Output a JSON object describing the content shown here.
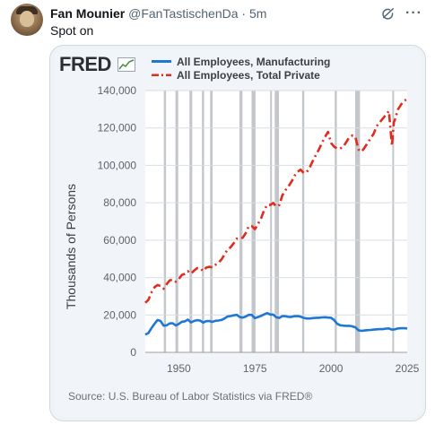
{
  "post": {
    "author_name": "Fan Mounier",
    "handle": "@FanTastischenDa",
    "separator": "·",
    "time": "5m",
    "text": "Spot on",
    "more_icon": "more-horizontal-icon",
    "grok_icon": "grok-icon"
  },
  "chart": {
    "logo_text": "FRED",
    "source": "Source: U.S. Bureau of Labor Statistics via FRED®",
    "colors": {
      "manufacturing": "#1f77d4",
      "private": "#e02b1e",
      "recession": "#b8bcc2"
    }
  },
  "chart_data": {
    "type": "line",
    "ylabel": "Thousands of Persons",
    "xlabel": "",
    "ylim": [
      0,
      140000
    ],
    "xlim": [
      1939,
      2025
    ],
    "yticks": [
      "0",
      "20,000",
      "40,000",
      "60,000",
      "80,000",
      "100,000",
      "120,000",
      "140,000"
    ],
    "xticks": [
      "1950",
      "1975",
      "2000",
      "2025"
    ],
    "legend_position": "top",
    "grid": "horizontal",
    "recessions": [
      [
        1945.1,
        1945.8
      ],
      [
        1948.9,
        1949.8
      ],
      [
        1953.5,
        1954.4
      ],
      [
        1957.6,
        1958.3
      ],
      [
        1960.3,
        1961.1
      ],
      [
        1969.9,
        1970.9
      ],
      [
        1973.9,
        1975.2
      ],
      [
        1980.0,
        1980.5
      ],
      [
        1981.5,
        1982.9
      ],
      [
        1990.5,
        1991.2
      ],
      [
        2001.2,
        2001.9
      ],
      [
        2007.9,
        2009.5
      ],
      [
        2020.1,
        2020.4
      ]
    ],
    "series": [
      {
        "name": "All Employees, Manufacturing",
        "style": "solid",
        "points": [
          [
            1939,
            9500
          ],
          [
            1940,
            10300
          ],
          [
            1941,
            12900
          ],
          [
            1942,
            15200
          ],
          [
            1943,
            17300
          ],
          [
            1944,
            16800
          ],
          [
            1945,
            14300
          ],
          [
            1946,
            14500
          ],
          [
            1947,
            15500
          ],
          [
            1948,
            15600
          ],
          [
            1949,
            14400
          ],
          [
            1950,
            15200
          ],
          [
            1951,
            16400
          ],
          [
            1952,
            16600
          ],
          [
            1953,
            17500
          ],
          [
            1954,
            16000
          ],
          [
            1955,
            16800
          ],
          [
            1956,
            17200
          ],
          [
            1957,
            17000
          ],
          [
            1958,
            15900
          ],
          [
            1959,
            16700
          ],
          [
            1960,
            16800
          ],
          [
            1961,
            16300
          ],
          [
            1962,
            16900
          ],
          [
            1963,
            17000
          ],
          [
            1964,
            17300
          ],
          [
            1965,
            18100
          ],
          [
            1966,
            19200
          ],
          [
            1967,
            19400
          ],
          [
            1968,
            19800
          ],
          [
            1969,
            20100
          ],
          [
            1970,
            18900
          ],
          [
            1971,
            18600
          ],
          [
            1972,
            19200
          ],
          [
            1973,
            20100
          ],
          [
            1974,
            20000
          ],
          [
            1975,
            18300
          ],
          [
            1976,
            18900
          ],
          [
            1977,
            19500
          ],
          [
            1978,
            20300
          ],
          [
            1979,
            21000
          ],
          [
            1980,
            20300
          ],
          [
            1981,
            20200
          ],
          [
            1982,
            18800
          ],
          [
            1983,
            18400
          ],
          [
            1984,
            19400
          ],
          [
            1985,
            19300
          ],
          [
            1986,
            19000
          ],
          [
            1987,
            19000
          ],
          [
            1988,
            19300
          ],
          [
            1989,
            19400
          ],
          [
            1990,
            19100
          ],
          [
            1991,
            18400
          ],
          [
            1992,
            18100
          ],
          [
            1993,
            18100
          ],
          [
            1994,
            18300
          ],
          [
            1995,
            18500
          ],
          [
            1996,
            18500
          ],
          [
            1997,
            18700
          ],
          [
            1998,
            18800
          ],
          [
            1999,
            18600
          ],
          [
            2000,
            18500
          ],
          [
            2001,
            17300
          ],
          [
            2002,
            15300
          ],
          [
            2003,
            14500
          ],
          [
            2004,
            14300
          ],
          [
            2005,
            14200
          ],
          [
            2006,
            14200
          ],
          [
            2007,
            13900
          ],
          [
            2008,
            13400
          ],
          [
            2009,
            11800
          ],
          [
            2010,
            11500
          ],
          [
            2011,
            11700
          ],
          [
            2012,
            11900
          ],
          [
            2013,
            12000
          ],
          [
            2014,
            12200
          ],
          [
            2015,
            12300
          ],
          [
            2016,
            12400
          ],
          [
            2017,
            12400
          ],
          [
            2018,
            12700
          ],
          [
            2019,
            12800
          ],
          [
            2020,
            12200
          ],
          [
            2021,
            12300
          ],
          [
            2022,
            12800
          ],
          [
            2023,
            12900
          ],
          [
            2024,
            12900
          ],
          [
            2025,
            12800
          ]
        ]
      },
      {
        "name": "All Employees, Total Private",
        "style": "dashdot",
        "points": [
          [
            1939,
            26500
          ],
          [
            1940,
            28000
          ],
          [
            1941,
            32000
          ],
          [
            1942,
            34800
          ],
          [
            1943,
            36000
          ],
          [
            1944,
            35500
          ],
          [
            1945,
            34000
          ],
          [
            1946,
            36500
          ],
          [
            1947,
            38500
          ],
          [
            1948,
            39000
          ],
          [
            1949,
            37800
          ],
          [
            1950,
            39200
          ],
          [
            1951,
            41400
          ],
          [
            1952,
            42000
          ],
          [
            1953,
            43400
          ],
          [
            1954,
            42100
          ],
          [
            1955,
            43700
          ],
          [
            1956,
            45000
          ],
          [
            1957,
            45000
          ],
          [
            1958,
            43500
          ],
          [
            1959,
            45300
          ],
          [
            1960,
            45800
          ],
          [
            1961,
            45400
          ],
          [
            1962,
            46800
          ],
          [
            1963,
            47900
          ],
          [
            1964,
            49600
          ],
          [
            1965,
            52300
          ],
          [
            1966,
            55100
          ],
          [
            1967,
            56200
          ],
          [
            1968,
            58300
          ],
          [
            1969,
            60800
          ],
          [
            1970,
            60800
          ],
          [
            1971,
            61300
          ],
          [
            1972,
            63800
          ],
          [
            1973,
            67500
          ],
          [
            1974,
            67500
          ],
          [
            1975,
            65900
          ],
          [
            1976,
            68600
          ],
          [
            1977,
            71600
          ],
          [
            1978,
            75900
          ],
          [
            1979,
            78800
          ],
          [
            1980,
            78800
          ],
          [
            1981,
            79900
          ],
          [
            1982,
            78000
          ],
          [
            1983,
            78800
          ],
          [
            1984,
            84000
          ],
          [
            1985,
            86700
          ],
          [
            1986,
            88700
          ],
          [
            1987,
            91300
          ],
          [
            1988,
            94400
          ],
          [
            1989,
            96500
          ],
          [
            1990,
            97700
          ],
          [
            1991,
            95900
          ],
          [
            1992,
            96400
          ],
          [
            1993,
            98800
          ],
          [
            1994,
            102300
          ],
          [
            1995,
            105500
          ],
          [
            1996,
            108400
          ],
          [
            1997,
            112000
          ],
          [
            1998,
            115100
          ],
          [
            1999,
            117900
          ],
          [
            2000,
            112000
          ],
          [
            2001,
            110000
          ],
          [
            2002,
            109000
          ],
          [
            2003,
            109000
          ],
          [
            2004,
            110000
          ],
          [
            2005,
            112500
          ],
          [
            2006,
            115000
          ],
          [
            2007,
            116000
          ],
          [
            2008,
            115000
          ],
          [
            2009,
            108500
          ],
          [
            2010,
            107300
          ],
          [
            2011,
            109500
          ],
          [
            2012,
            112000
          ],
          [
            2013,
            114500
          ],
          [
            2014,
            117000
          ],
          [
            2015,
            121000
          ],
          [
            2016,
            123000
          ],
          [
            2017,
            125000
          ],
          [
            2018,
            127000
          ],
          [
            2019,
            129000
          ],
          [
            2020,
            110500
          ],
          [
            2020.6,
            123000
          ],
          [
            2021,
            124500
          ],
          [
            2022,
            130000
          ],
          [
            2023,
            132500
          ],
          [
            2024,
            134500
          ],
          [
            2025,
            135500
          ]
        ]
      }
    ]
  }
}
